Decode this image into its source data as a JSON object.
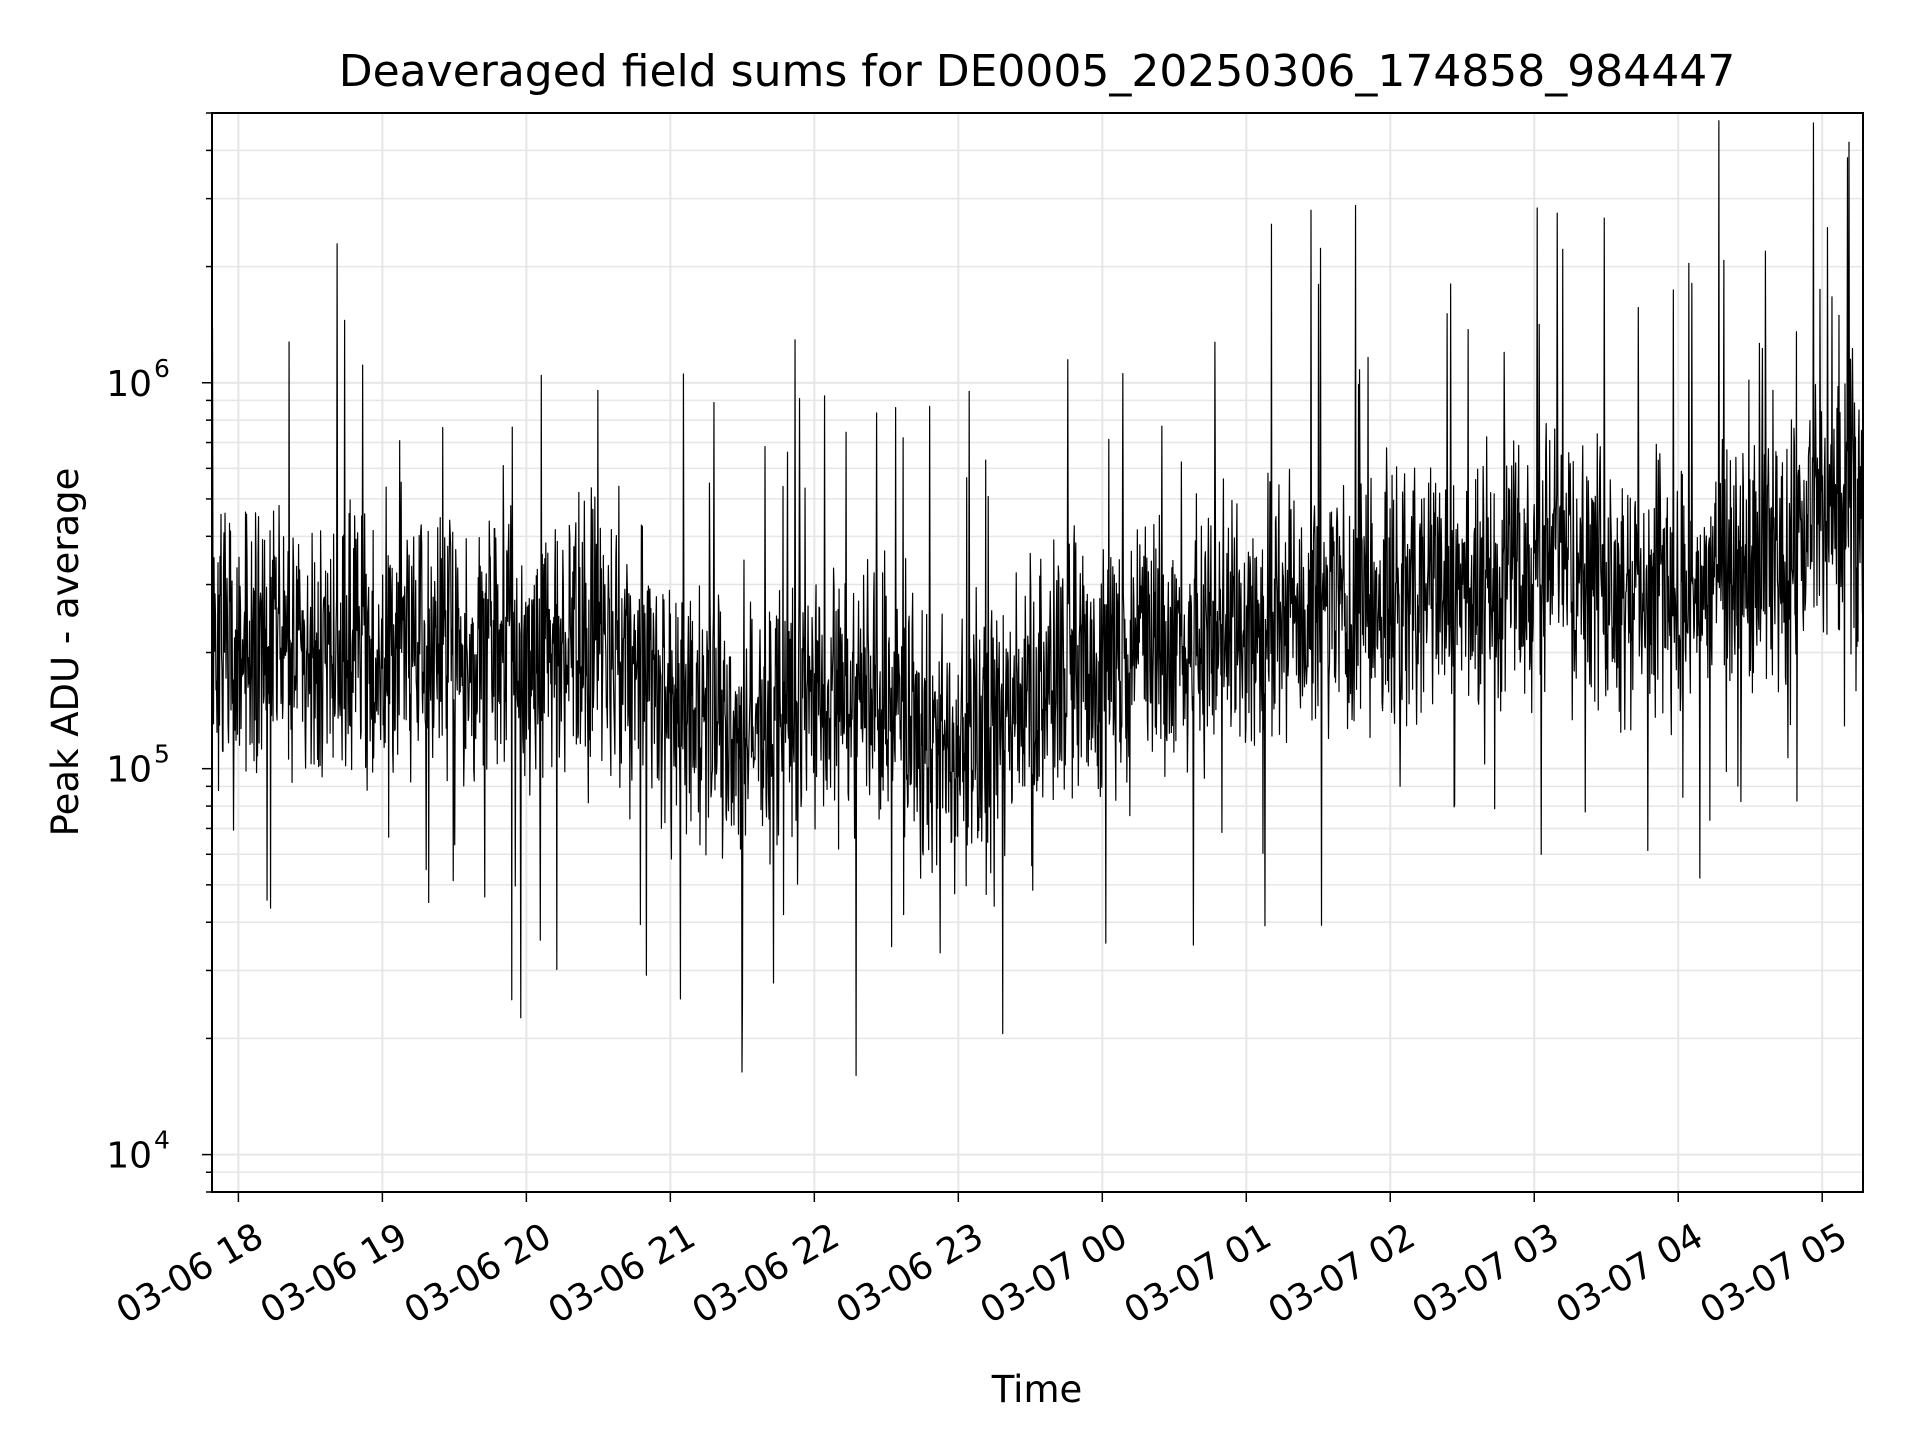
{
  "chart_data": {
    "type": "line",
    "title": "Deaveraged field sums for DE0005_20250306_174858_984447",
    "xlabel": "Time",
    "ylabel": "Peak ADU - average",
    "yscale": "log",
    "ylim": [
      8000,
      5000000
    ],
    "xlim": [
      "2025-03-06T17:49:00",
      "2025-03-07T05:17:00"
    ],
    "x_ticks": [
      "03-06 18",
      "03-06 19",
      "03-06 20",
      "03-06 21",
      "03-06 22",
      "03-06 23",
      "03-07 00",
      "03-07 01",
      "03-07 02",
      "03-07 03",
      "03-07 04",
      "03-07 05"
    ],
    "x_tick_times": [
      "2025-03-06T18:00:00",
      "2025-03-06T19:00:00",
      "2025-03-06T20:00:00",
      "2025-03-06T21:00:00",
      "2025-03-06T22:00:00",
      "2025-03-06T23:00:00",
      "2025-03-07T00:00:00",
      "2025-03-07T01:00:00",
      "2025-03-07T02:00:00",
      "2025-03-07T03:00:00",
      "2025-03-07T04:00:00",
      "2025-03-07T05:00:00"
    ],
    "y_ticks": [
      {
        "value": 10000,
        "base": "10",
        "exp": "4"
      },
      {
        "value": 100000,
        "base": "10",
        "exp": "5"
      },
      {
        "value": 1000000,
        "base": "10",
        "exp": "6"
      }
    ],
    "grid": true,
    "line_color": "#000000",
    "grid_color": "#e6e6e6",
    "series": [
      {
        "x": [
          "2025-03-06T17:49:00",
          "2025-03-06T18:00:00",
          "2025-03-06T18:15:00",
          "2025-03-06T18:30:00",
          "2025-03-06T18:45:00",
          "2025-03-06T19:00:00",
          "2025-03-06T19:15:00",
          "2025-03-06T19:30:00",
          "2025-03-06T19:45:00",
          "2025-03-06T20:00:00",
          "2025-03-06T20:15:00",
          "2025-03-06T20:30:00",
          "2025-03-06T20:45:00",
          "2025-03-06T21:00:00",
          "2025-03-06T21:15:00",
          "2025-03-06T21:30:00",
          "2025-03-06T21:45:00",
          "2025-03-06T22:00:00",
          "2025-03-06T22:15:00",
          "2025-03-06T22:30:00",
          "2025-03-06T22:45:00",
          "2025-03-06T23:00:00",
          "2025-03-06T23:15:00",
          "2025-03-06T23:30:00",
          "2025-03-06T23:45:00",
          "2025-03-07T00:00:00",
          "2025-03-07T00:15:00",
          "2025-03-07T00:30:00",
          "2025-03-07T00:45:00",
          "2025-03-07T01:00:00",
          "2025-03-07T01:15:00",
          "2025-03-07T01:30:00",
          "2025-03-07T01:45:00",
          "2025-03-07T02:00:00",
          "2025-03-07T02:15:00",
          "2025-03-07T02:30:00",
          "2025-03-07T02:45:00",
          "2025-03-07T03:00:00",
          "2025-03-07T03:15:00",
          "2025-03-07T03:30:00",
          "2025-03-07T03:45:00",
          "2025-03-07T04:00:00",
          "2025-03-07T04:15:00",
          "2025-03-07T04:30:00",
          "2025-03-07T04:45:00",
          "2025-03-07T05:00:00",
          "2025-03-07T05:17:00"
        ],
        "y": [
          210000,
          220000,
          230000,
          200000,
          210000,
          200000,
          210000,
          200000,
          200000,
          190000,
          220000,
          230000,
          190000,
          160000,
          130000,
          110000,
          140000,
          160000,
          150000,
          160000,
          120000,
          110000,
          130000,
          150000,
          170000,
          190000,
          200000,
          210000,
          220000,
          230000,
          260000,
          270000,
          280000,
          280000,
          300000,
          310000,
          320000,
          330000,
          400000,
          310000,
          290000,
          300000,
          310000,
          320000,
          340000,
          450000,
          520000
        ]
      }
    ]
  }
}
